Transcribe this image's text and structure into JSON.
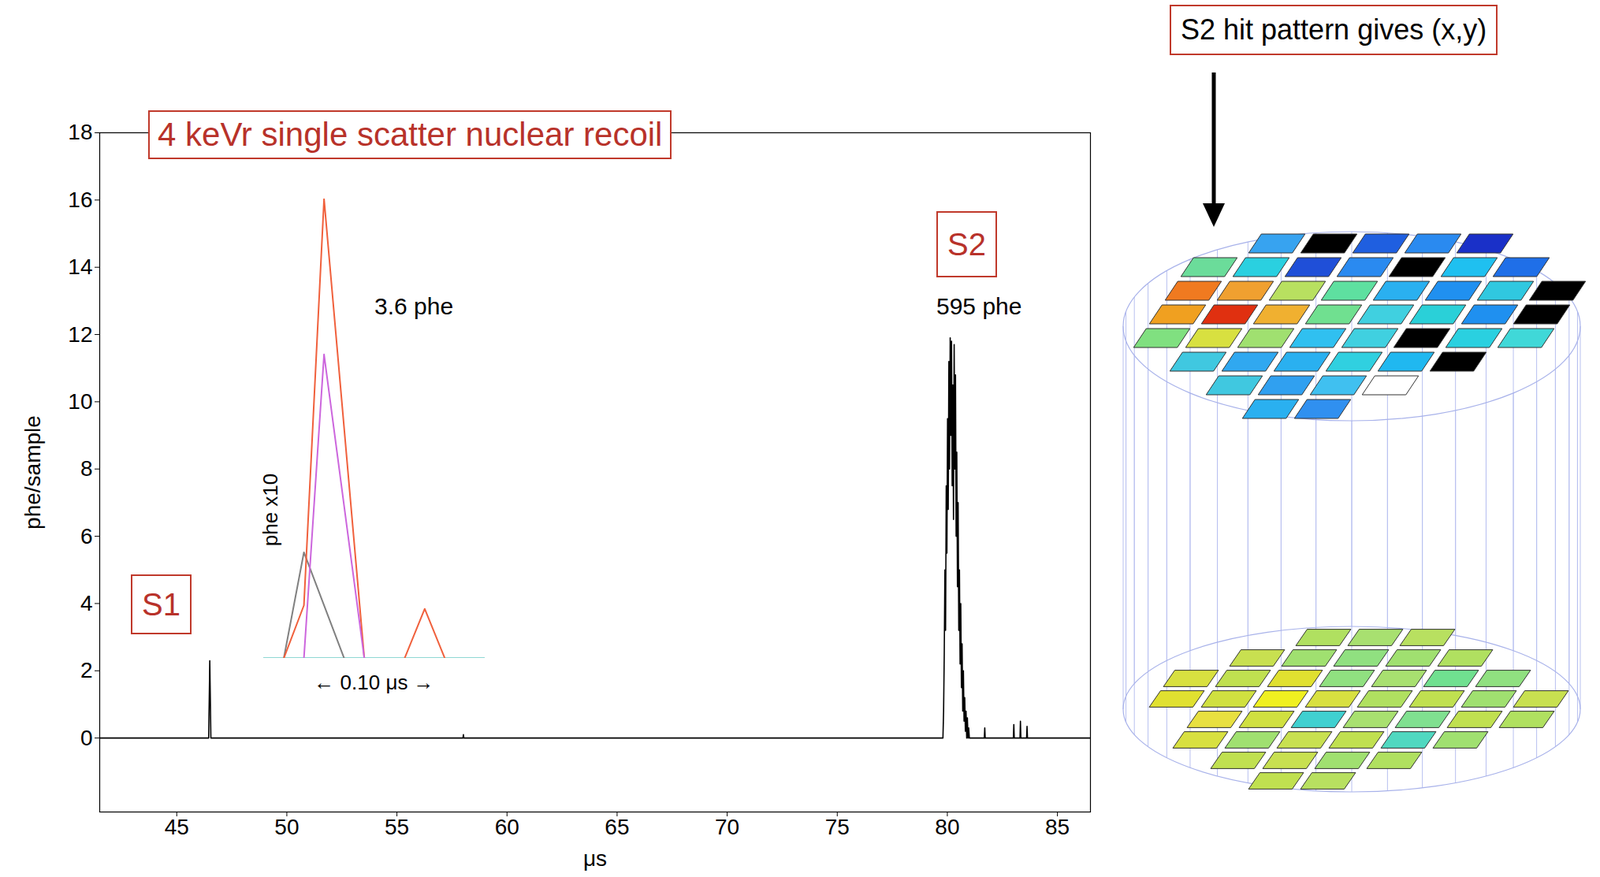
{
  "chart_data": [
    {
      "type": "line",
      "title": "4 keVr single scatter nuclear recoil",
      "x_label": "μs",
      "y_label": "phe/sample",
      "xlim": [
        41.5,
        86.5
      ],
      "ylim": [
        -2.2,
        18
      ],
      "xticks": [
        45,
        50,
        55,
        60,
        65,
        70,
        75,
        80,
        85
      ],
      "yticks": [
        0,
        2,
        4,
        6,
        8,
        10,
        12,
        14,
        16,
        18
      ],
      "grid": false,
      "color": "#000000",
      "x": [
        41.5,
        46.45,
        46.5,
        46.55,
        58.0,
        58.02,
        58.04,
        79.8,
        79.83,
        79.86,
        79.89,
        79.92,
        79.95,
        79.98,
        80.01,
        80.04,
        80.07,
        80.1,
        80.13,
        80.16,
        80.19,
        80.22,
        80.25,
        80.28,
        80.31,
        80.34,
        80.37,
        80.4,
        80.43,
        80.46,
        80.49,
        80.52,
        80.55,
        80.58,
        80.61,
        80.64,
        80.67,
        80.7,
        80.73,
        80.76,
        80.79,
        80.82,
        80.85,
        80.88,
        80.91,
        80.94,
        80.97,
        81.0,
        81.68,
        81.7,
        81.72,
        83.0,
        83.02,
        83.04,
        83.3,
        83.32,
        83.34,
        83.6,
        83.62,
        83.64,
        86.5
      ],
      "values": [
        0,
        0,
        2.3,
        0,
        0,
        0.1,
        0,
        0,
        0.8,
        2.5,
        5.0,
        3.2,
        7.5,
        5.5,
        9.5,
        6.8,
        11.2,
        8.0,
        11.9,
        9.0,
        11.8,
        7.5,
        10.5,
        6.5,
        11.7,
        8.0,
        10.8,
        6.0,
        8.5,
        4.5,
        7.0,
        3.2,
        5.0,
        2.2,
        4.0,
        1.5,
        2.8,
        0.8,
        2.0,
        0.5,
        1.2,
        0.2,
        0.8,
        0,
        0.6,
        0,
        0.3,
        0,
        0,
        0.3,
        0,
        0,
        0.4,
        0,
        0,
        0.5,
        0,
        0,
        0.35,
        0,
        0
      ],
      "annotations": [
        {
          "text": "S1"
        },
        {
          "text": "S2"
        },
        {
          "text": "3.6 phe"
        },
        {
          "text": "595 phe"
        }
      ]
    },
    {
      "type": "line",
      "x_label": "← 0.10 μs →",
      "y_label": "phe x10",
      "xlim": [
        0,
        0.11
      ],
      "ylim": [
        0,
        13
      ],
      "tick_labels": false,
      "series": [
        {
          "color": "#20b2aa",
          "x": [
            0,
            0.11
          ],
          "values": [
            0,
            0
          ]
        },
        {
          "color": "#808080",
          "x": [
            0.01,
            0.02,
            0.04
          ],
          "values": [
            0,
            3,
            0
          ]
        },
        {
          "color": "#f0603c",
          "x": [
            0.01,
            0.02,
            0.03,
            0.05,
            0.06,
            0.07,
            0.08,
            0.09
          ],
          "values": [
            0,
            1.5,
            13,
            0,
            null,
            0,
            1.4,
            0
          ]
        },
        {
          "color": "#cc66dd",
          "x": [
            0.02,
            0.03,
            0.05
          ],
          "values": [
            0,
            8.6,
            0
          ]
        }
      ]
    }
  ],
  "diagram": {
    "label": "S2 hit pattern gives (x,y)",
    "top_array_colors": [
      [
        null,
        "#37a3f0",
        "#000000",
        "#1f5fe0",
        "#2a8af0",
        "#1a30c8",
        null,
        null
      ],
      [
        "#6bdc9a",
        "#2ad0e0",
        "#1f4fd8",
        "#2a8af0",
        "#000000",
        "#1fc0f0",
        "#1f6fe8",
        null
      ],
      [
        "#f07a20",
        "#f0a030",
        "#b8e060",
        "#5ee0a0",
        "#2ab0f0",
        "#2090f0",
        "#30c8e0",
        "#000000"
      ],
      [
        "#f0a020",
        "#e03010",
        "#f0b030",
        "#70e090",
        "#40d0e0",
        "#2ad0d8",
        "#1f90f0",
        "#000000"
      ],
      [
        "#80e080",
        "#d8e040",
        "#a0e070",
        "#30c0f0",
        "#40d0e0",
        "#000000",
        "#2ad0e0",
        "#40d8d8"
      ],
      [
        null,
        "#40c8e0",
        "#30a8f0",
        "#2ab0f0",
        "#30d0e0",
        "#20b8f0",
        "#000000",
        null
      ],
      [
        null,
        null,
        "#40c8e0",
        "#30a0f0",
        "#40c0f0",
        "#ffffff",
        null,
        null
      ],
      [
        null,
        null,
        null,
        "#2ab0f0",
        "#3090f0",
        null,
        null,
        null
      ]
    ],
    "bottom_array_colors": [
      [
        null,
        null,
        "#b0e060",
        "#a8e070",
        "#b8e060",
        null,
        null,
        null
      ],
      [
        null,
        "#c8e050",
        "#a0e070",
        "#90e080",
        "#a0e070",
        "#b0e060",
        null,
        null
      ],
      [
        "#d8e040",
        "#c0e050",
        "#e0e030",
        "#90e080",
        "#a8e070",
        "#70e090",
        "#90e080",
        null
      ],
      [
        "#e0e030",
        "#d0e040",
        "#f0f020",
        "#d8e040",
        "#b0e060",
        "#c0e050",
        "#a0e070",
        "#c8e050"
      ],
      [
        null,
        "#e8e040",
        "#d0e040",
        "#40d0d0",
        "#a8e070",
        "#80e090",
        "#c0e050",
        "#b0e060"
      ],
      [
        null,
        "#d8e040",
        "#a0e070",
        "#c8e050",
        "#c0e050",
        "#50d8c0",
        "#a0e070",
        null
      ],
      [
        null,
        null,
        "#c0e050",
        "#c8e050",
        "#a0e070",
        "#b0e060",
        null,
        null
      ],
      [
        null,
        null,
        null,
        "#c0e050",
        "#b8e060",
        null,
        null,
        null
      ]
    ]
  }
}
